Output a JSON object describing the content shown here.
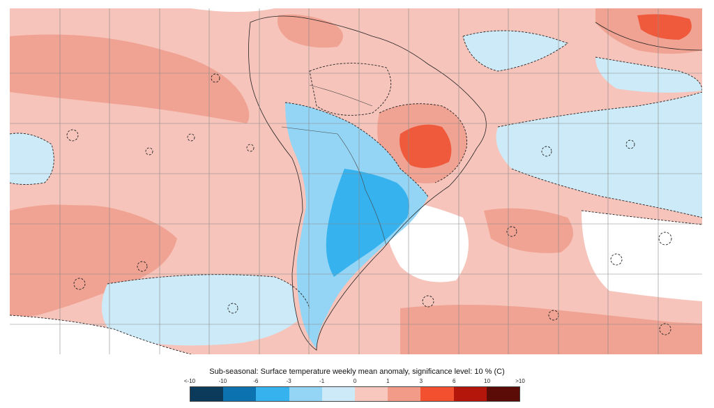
{
  "legend": {
    "title": "Sub-seasonal: Surface temperature weekly mean anomaly, significance level: 10 % (C)",
    "ticks": [
      "<-10",
      "-10",
      "-6",
      "-3",
      "-1",
      "0",
      "1",
      "3",
      "6",
      "10",
      ">10"
    ],
    "colors": [
      "#0b3a5a",
      "#0c72b0",
      "#36b2ee",
      "#94d5f5",
      "#cdeaf8",
      "#f8c8bf",
      "#f39b89",
      "#f2502e",
      "#b5160c",
      "#5c0c06"
    ]
  },
  "map_colors": {
    "ocean_base": "#f6c4ba",
    "warm_medium": "#f0a293",
    "warm_strong": "#ef5a3c",
    "warm_dark": "#d03020",
    "cool_light": "#cdeaf8",
    "cool_medium": "#94d5f5",
    "cool_strong": "#36b2ee",
    "insignificant": "#ffffff"
  }
}
